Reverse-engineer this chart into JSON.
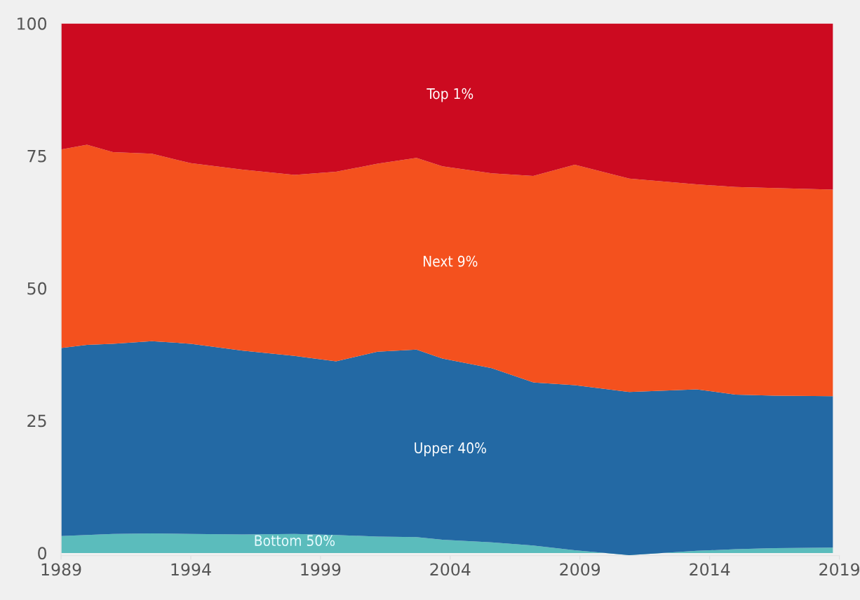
{
  "chart_data": {
    "type": "area",
    "stacked": true,
    "x": [
      1989,
      1990,
      1991,
      1992.5,
      1994,
      1996,
      1998,
      1999.6,
      2001.2,
      2002.7,
      2003.7,
      2005.6,
      2007.2,
      2008.8,
      2010.9,
      2013.5,
      2015,
      2016.5,
      2018.75
    ],
    "series": [
      {
        "name": "Bottom 50%",
        "color": "#5bbcbc",
        "values": [
          3.2,
          3.4,
          3.6,
          3.7,
          3.6,
          3.5,
          3.6,
          3.4,
          3.1,
          3.0,
          2.5,
          2.0,
          1.4,
          0.5,
          -0.4,
          0.4,
          0.7,
          0.9,
          1.0
        ]
      },
      {
        "name": "Upper 40%",
        "color": "#2369a4",
        "values": [
          35.5,
          35.9,
          35.9,
          36.3,
          35.9,
          34.7,
          33.6,
          32.8,
          34.9,
          35.4,
          34.2,
          32.9,
          30.8,
          31.2,
          30.8,
          30.5,
          29.2,
          28.8,
          28.6
        ]
      },
      {
        "name": "Next 9%",
        "color": "#f4511e",
        "values": [
          37.5,
          37.8,
          36.2,
          35.4,
          34.1,
          34.2,
          34.2,
          35.8,
          35.5,
          36.2,
          36.3,
          36.8,
          39.0,
          41.6,
          40.3,
          38.7,
          39.2,
          39.2,
          39.0
        ]
      },
      {
        "name": "Top 1%",
        "color": "#cc0a20",
        "values": [
          23.8,
          22.9,
          24.3,
          24.6,
          26.4,
          27.6,
          28.6,
          28.0,
          26.5,
          25.4,
          27.0,
          28.3,
          28.8,
          26.7,
          29.3,
          30.4,
          30.9,
          31.1,
          31.4
        ]
      }
    ],
    "xlim": [
      1989,
      2019
    ],
    "xticks": [
      1989,
      1994,
      1999,
      2004,
      2009,
      2014,
      2019
    ],
    "ylim": [
      -0.5,
      100
    ],
    "yticks": [
      0,
      25,
      50,
      75,
      100
    ],
    "grid": false,
    "legend": false
  }
}
